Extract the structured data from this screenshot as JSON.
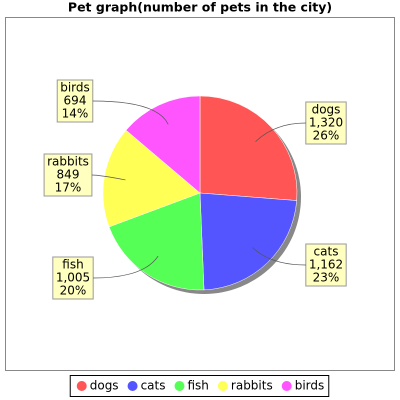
{
  "chart_data": {
    "type": "pie",
    "title": "Pet graph(number of pets in the city)",
    "categories": [
      "dogs",
      "cats",
      "fish",
      "rabbits",
      "birds"
    ],
    "values": [
      1320,
      1162,
      1005,
      849,
      694
    ],
    "value_labels": [
      "1,320",
      "1,162",
      "1,005",
      "849",
      "694"
    ],
    "percent_labels": [
      "26%",
      "23%",
      "20%",
      "17%",
      "14%"
    ],
    "colors": [
      "#ff5555",
      "#5555ff",
      "#55ff55",
      "#ffff55",
      "#ff55ff"
    ],
    "legend": "bottom"
  }
}
